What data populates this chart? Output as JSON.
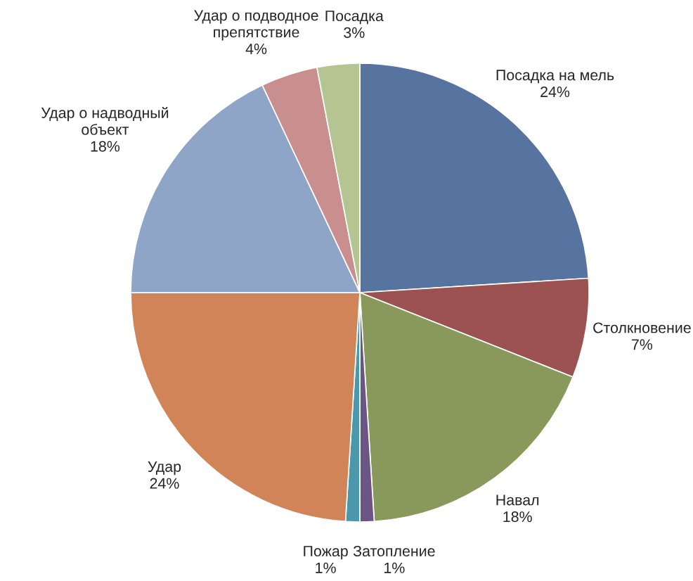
{
  "chart_data": {
    "type": "pie",
    "categories": [
      "Посадка на мель",
      "Столкновение",
      "Навал",
      "Затопление",
      "Пожар",
      "Удар",
      "Удар о надводный объект",
      "Удар о подводное препятствие",
      "Посадка"
    ],
    "values": [
      24,
      7,
      18,
      1,
      1,
      24,
      18,
      4,
      3
    ],
    "colors": [
      "#56749f",
      "#9b5251",
      "#89995c",
      "#6a5585",
      "#4b97ac",
      "#d28459",
      "#8ea5c8",
      "#c98e8e",
      "#b4c591"
    ],
    "value_labels": [
      "24%",
      "7%",
      "18%",
      "1%",
      "1%",
      "24%",
      "18%",
      "4%",
      "3%"
    ]
  }
}
